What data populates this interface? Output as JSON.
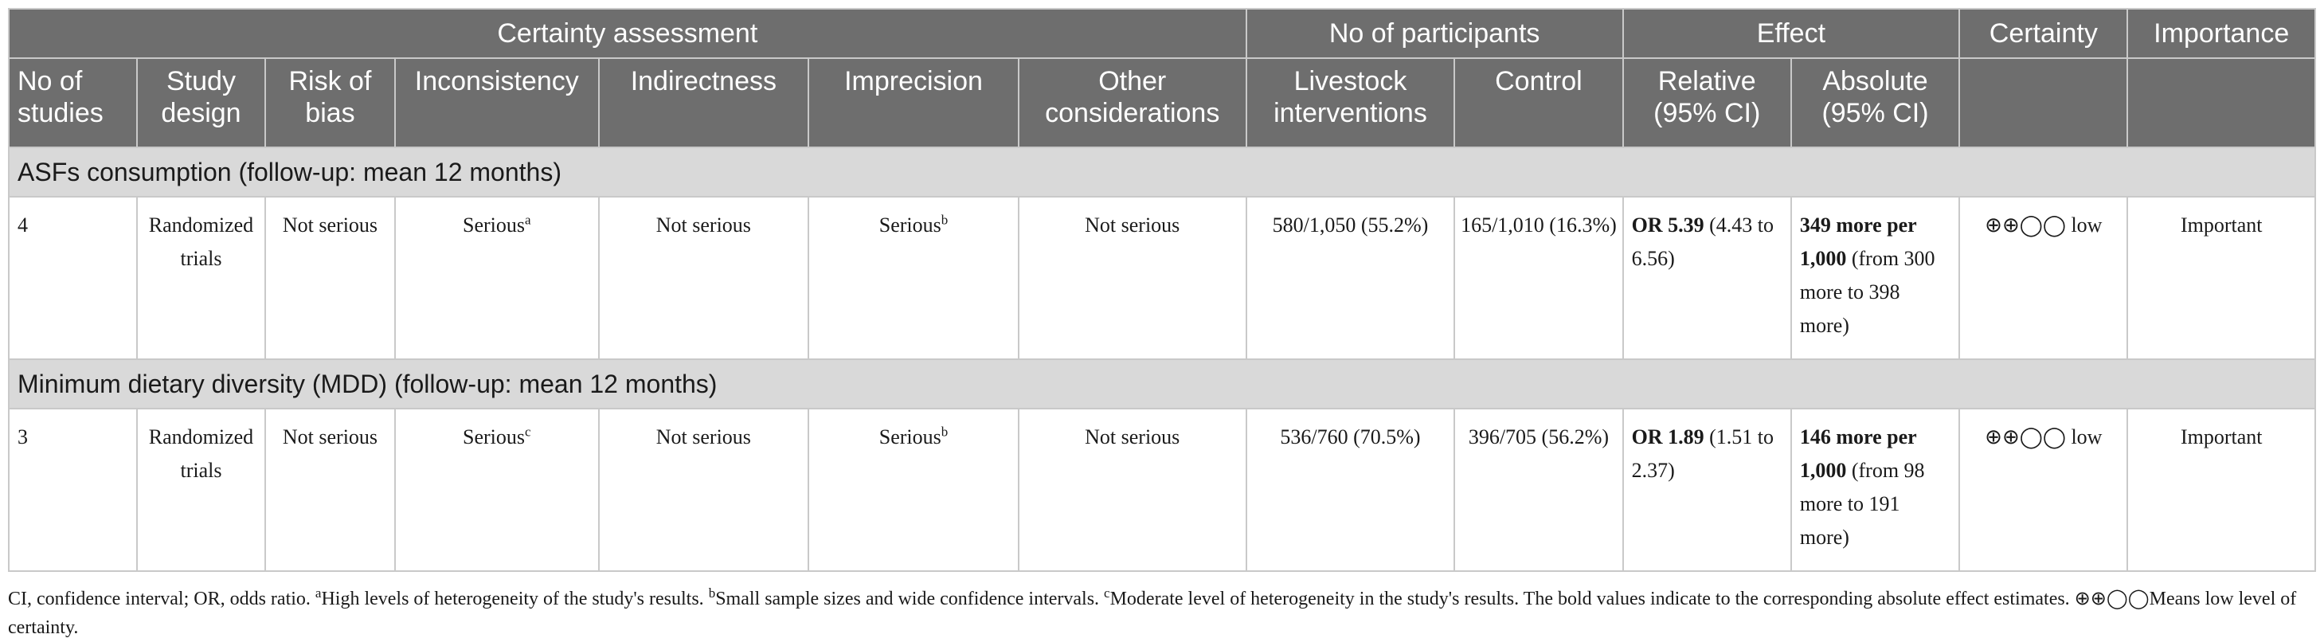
{
  "header_groups": {
    "certainty_assessment": "Certainty assessment",
    "participants": "No of participants",
    "effect": "Effect",
    "certainty": "Certainty",
    "importance": "Importance"
  },
  "columns": {
    "no_of_studies": "No of studies",
    "study_design": "Study design",
    "risk_of_bias": "Risk of bias",
    "inconsistency": "Inconsistency",
    "indirectness": "Indirectness",
    "imprecision": "Imprecision",
    "other": "Other considerations",
    "livestock": "Livestock interventions",
    "control": "Control",
    "relative": "Relative (95% CI)",
    "absolute": "Absolute (95% CI)"
  },
  "sections": [
    {
      "title": "ASFs consumption (follow-up: mean 12 months)",
      "row": {
        "studies": "4",
        "design": "Randomized trials",
        "risk": "Not serious",
        "inconsistency": "Serious",
        "inconsistency_sup": "a",
        "indirectness": "Not serious",
        "imprecision": "Serious",
        "imprecision_sup": "b",
        "other": "Not serious",
        "livestock": "580/1,050 (55.2%)",
        "control": "165/1,010 (16.3%)",
        "relative_bold": "OR 5.39",
        "relative_rest": " (4.43 to 6.56)",
        "absolute_bold": "349 more per 1,000",
        "absolute_rest": " (from 300 more to 398 more)",
        "certainty": "⊕⊕◯◯ low",
        "importance": "Important"
      }
    },
    {
      "title": "Minimum dietary diversity (MDD) (follow-up: mean 12 months)",
      "row": {
        "studies": "3",
        "design": "Randomized trials",
        "risk": "Not serious",
        "inconsistency": "Serious",
        "inconsistency_sup": "c",
        "indirectness": "Not serious",
        "imprecision": "Serious",
        "imprecision_sup": "b",
        "other": "Not serious",
        "livestock": "536/760 (70.5%)",
        "control": "396/705 (56.2%)",
        "relative_bold": "OR 1.89",
        "relative_rest": " (1.51 to 2.37)",
        "absolute_bold": "146 more per 1,000",
        "absolute_rest": " (from 98 more to 191 more)",
        "certainty": "⊕⊕◯◯ low",
        "importance": "Important"
      }
    }
  ],
  "footnote": {
    "intro": "CI, confidence interval; OR, odds ratio. ",
    "a_sup": "a",
    "a_text": "High levels of heterogeneity of the study's results. ",
    "b_sup": "b",
    "b_text": "Small sample sizes and wide confidence intervals. ",
    "c_sup": "c",
    "c_text": "Moderate level of heterogeneity in the study's results. The bold values indicate to the corresponding absolute effect estimates. ⊕⊕◯◯Means low level of certainty."
  }
}
